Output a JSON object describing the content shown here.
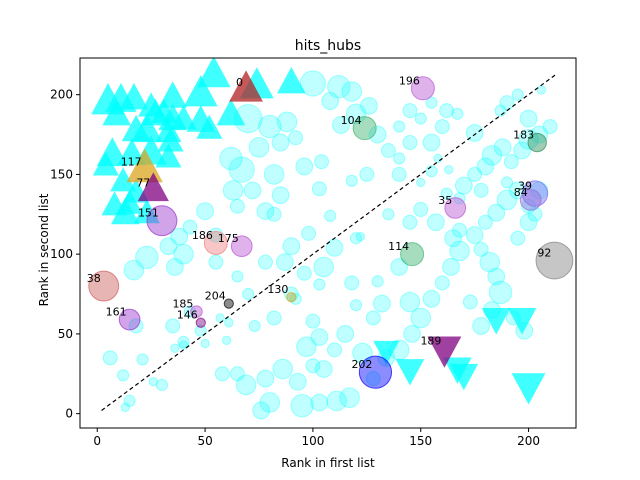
{
  "chart_data": {
    "type": "scatter",
    "title": "hits_hubs",
    "xlabel": "Rank in first list",
    "ylabel": "Rank in second list",
    "xlim": [
      -8,
      222
    ],
    "ylim": [
      -9,
      223
    ],
    "xticks": [
      0,
      50,
      100,
      150,
      200
    ],
    "yticks": [
      0,
      50,
      100,
      150,
      200
    ],
    "grid": false,
    "diagonal": {
      "from": [
        2,
        2
      ],
      "to": [
        213,
        213
      ],
      "style": "dashed",
      "color": "#000000"
    },
    "background_points": [
      [
        112,
        205,
        8
      ],
      [
        118,
        202,
        7
      ],
      [
        100,
        207,
        9
      ],
      [
        108,
        196,
        6
      ],
      [
        70,
        185,
        10
      ],
      [
        80,
        180,
        8
      ],
      [
        88,
        183,
        7
      ],
      [
        113,
        181,
        6
      ],
      [
        120,
        188,
        7
      ],
      [
        126,
        193,
        6
      ],
      [
        75,
        167,
        7
      ],
      [
        85,
        170,
        6
      ],
      [
        92,
        173,
        5
      ],
      [
        62,
        160,
        8
      ],
      [
        67,
        153,
        9
      ],
      [
        82,
        150,
        7
      ],
      [
        96,
        155,
        6
      ],
      [
        104,
        158,
        5
      ],
      [
        63,
        140,
        7
      ],
      [
        72,
        140,
        6
      ],
      [
        85,
        137,
        6
      ],
      [
        103,
        141,
        5
      ],
      [
        65,
        130,
        5
      ],
      [
        78,
        127,
        6
      ],
      [
        82,
        125,
        5
      ],
      [
        50,
        127,
        6
      ],
      [
        108,
        124,
        4
      ],
      [
        55,
        112,
        5
      ],
      [
        43,
        117,
        5
      ],
      [
        38,
        111,
        6
      ],
      [
        40,
        100,
        7
      ],
      [
        36,
        92,
        6
      ],
      [
        23,
        98,
        8
      ],
      [
        17,
        90,
        7
      ],
      [
        33,
        105,
        6
      ],
      [
        55,
        95,
        5
      ],
      [
        65,
        86,
        4
      ],
      [
        78,
        95,
        5
      ],
      [
        87,
        95,
        6
      ],
      [
        96,
        88,
        5
      ],
      [
        105,
        92,
        7
      ],
      [
        110,
        104,
        6
      ],
      [
        98,
        113,
        5
      ],
      [
        90,
        105,
        6
      ],
      [
        118,
        82,
        5
      ],
      [
        130,
        83,
        4
      ],
      [
        140,
        92,
        6
      ],
      [
        145,
        70,
        7
      ],
      [
        132,
        69,
        6
      ],
      [
        128,
        60,
        5
      ],
      [
        120,
        68,
        4
      ],
      [
        115,
        50,
        6
      ],
      [
        123,
        38,
        7
      ],
      [
        110,
        40,
        5
      ],
      [
        103,
        48,
        6
      ],
      [
        97,
        42,
        7
      ],
      [
        105,
        28,
        6
      ],
      [
        117,
        10,
        7
      ],
      [
        111,
        8,
        7
      ],
      [
        103,
        7,
        6
      ],
      [
        95,
        5,
        8
      ],
      [
        80,
        7,
        7
      ],
      [
        76,
        2,
        6
      ],
      [
        69,
        18,
        7
      ],
      [
        65,
        25,
        5
      ],
      [
        78,
        22,
        6
      ],
      [
        58,
        25,
        5
      ],
      [
        86,
        28,
        7
      ],
      [
        93,
        20,
        6
      ],
      [
        100,
        30,
        5
      ],
      [
        128,
        22,
        5
      ],
      [
        134,
        35,
        6
      ],
      [
        140,
        40,
        7
      ],
      [
        146,
        50,
        6
      ],
      [
        150,
        60,
        7
      ],
      [
        155,
        72,
        6
      ],
      [
        160,
        82,
        5
      ],
      [
        164,
        92,
        6
      ],
      [
        168,
        102,
        7
      ],
      [
        165,
        110,
        6
      ],
      [
        168,
        115,
        5
      ],
      [
        157,
        120,
        6
      ],
      [
        150,
        128,
        5
      ],
      [
        162,
        138,
        4
      ],
      [
        170,
        143,
        6
      ],
      [
        175,
        150,
        5
      ],
      [
        180,
        155,
        6
      ],
      [
        183,
        162,
        7
      ],
      [
        188,
        167,
        6
      ],
      [
        192,
        158,
        5
      ],
      [
        197,
        165,
        6
      ],
      [
        200,
        172,
        7
      ],
      [
        205,
        175,
        6
      ],
      [
        210,
        180,
        5
      ],
      [
        195,
        140,
        6
      ],
      [
        190,
        134,
        7
      ],
      [
        185,
        126,
        6
      ],
      [
        180,
        120,
        5
      ],
      [
        175,
        112,
        6
      ],
      [
        178,
        103,
        5
      ],
      [
        182,
        95,
        7
      ],
      [
        185,
        86,
        6
      ],
      [
        187,
        76,
        8
      ],
      [
        183,
        65,
        6
      ],
      [
        173,
        70,
        5
      ],
      [
        178,
        55,
        6
      ],
      [
        193,
        60,
        5
      ],
      [
        198,
        52,
        6
      ],
      [
        195,
        110,
        5
      ],
      [
        200,
        120,
        6
      ],
      [
        200,
        130,
        5
      ],
      [
        205,
        140,
        6
      ],
      [
        203,
        125,
        5
      ],
      [
        190,
        145,
        4
      ],
      [
        178,
        140,
        5
      ],
      [
        168,
        135,
        4
      ],
      [
        155,
        170,
        6
      ],
      [
        160,
        180,
        5
      ],
      [
        162,
        190,
        5
      ],
      [
        155,
        195,
        4
      ],
      [
        150,
        185,
        4
      ],
      [
        145,
        170,
        5
      ],
      [
        140,
        160,
        4
      ],
      [
        135,
        165,
        5
      ],
      [
        130,
        175,
        6
      ],
      [
        140,
        180,
        4
      ],
      [
        145,
        190,
        5
      ],
      [
        167,
        188,
        4
      ],
      [
        175,
        176,
        6
      ],
      [
        187,
        190,
        4
      ],
      [
        190,
        195,
        5
      ],
      [
        195,
        200,
        4
      ],
      [
        200,
        185,
        6
      ],
      [
        206,
        203,
        3
      ],
      [
        155,
        152,
        4
      ],
      [
        158,
        160,
        3
      ],
      [
        163,
        153,
        3
      ],
      [
        140,
        150,
        5
      ],
      [
        12,
        24,
        4
      ],
      [
        6,
        35,
        5
      ],
      [
        15,
        8,
        4
      ],
      [
        30,
        18,
        4
      ],
      [
        26,
        20,
        3
      ],
      [
        35,
        55,
        5
      ],
      [
        40,
        45,
        4
      ],
      [
        48,
        52,
        4
      ],
      [
        60,
        46,
        3
      ],
      [
        73,
        55,
        4
      ],
      [
        90,
        75,
        5
      ],
      [
        92,
        72,
        4
      ],
      [
        100,
        58,
        5
      ],
      [
        82,
        60,
        5
      ],
      [
        70,
        75,
        4
      ],
      [
        103,
        81,
        4
      ],
      [
        43,
        64,
        4
      ],
      [
        36,
        41,
        3
      ],
      [
        40,
        43,
        3
      ],
      [
        50,
        44,
        3
      ],
      [
        18,
        55,
        5
      ],
      [
        21,
        34,
        4
      ],
      [
        57,
        60,
        3
      ],
      [
        61,
        57,
        3
      ],
      [
        135,
        125,
        4
      ],
      [
        145,
        120,
        5
      ],
      [
        120,
        110,
        4
      ],
      [
        122,
        111,
        3
      ],
      [
        150,
        145,
        3
      ],
      [
        125,
        150,
        5
      ],
      [
        118,
        146,
        4
      ],
      [
        13,
        4,
        3
      ]
    ],
    "triangles_up": [
      [
        5,
        195,
        13
      ],
      [
        9,
        187,
        11
      ],
      [
        11,
        196,
        12
      ],
      [
        17,
        197,
        11
      ],
      [
        18,
        177,
        11
      ],
      [
        23,
        177,
        12
      ],
      [
        27,
        187,
        11
      ],
      [
        31,
        188,
        10
      ],
      [
        33,
        176,
        10
      ],
      [
        35,
        184,
        11
      ],
      [
        34,
        170,
        10
      ],
      [
        33,
        160,
        10
      ],
      [
        25,
        163,
        12
      ],
      [
        16,
        162,
        11
      ],
      [
        7,
        162,
        12
      ],
      [
        4,
        155,
        10
      ],
      [
        12,
        145,
        10
      ],
      [
        8,
        130,
        10
      ],
      [
        13,
        125,
        11
      ],
      [
        23,
        125,
        10
      ],
      [
        15,
        131,
        10
      ],
      [
        18,
        138,
        10
      ],
      [
        48,
        183,
        11
      ],
      [
        48,
        200,
        13
      ],
      [
        54,
        212,
        13
      ],
      [
        40,
        184,
        10
      ],
      [
        35,
        198,
        11
      ],
      [
        74,
        205,
        13
      ],
      [
        90,
        207,
        11
      ],
      [
        25,
        192,
        10
      ],
      [
        62,
        187,
        11
      ],
      [
        52,
        178,
        10
      ]
    ],
    "triangles_down": [
      [
        185,
        60,
        11
      ],
      [
        197,
        60,
        11
      ],
      [
        167,
        29,
        11
      ],
      [
        170,
        25,
        11
      ],
      [
        145,
        28,
        11
      ],
      [
        200,
        18,
        13
      ],
      [
        134,
        40,
        10
      ]
    ],
    "highlight_points": [
      {
        "label": "0",
        "x": 69,
        "y": 203,
        "size": 13,
        "shape": "triangle-up",
        "color": "#B22222"
      },
      {
        "label": "196",
        "x": 151,
        "y": 204,
        "size": 10,
        "shape": "circle",
        "color": "#BA55D3"
      },
      {
        "label": "104",
        "x": 124,
        "y": 179,
        "size": 10,
        "shape": "circle",
        "color": "#3CB371"
      },
      {
        "label": "183",
        "x": 204,
        "y": 170,
        "size": 8,
        "shape": "circle",
        "color": "#2E8B57"
      },
      {
        "label": "117",
        "x": 22,
        "y": 153,
        "size": 14,
        "shape": "triangle-up",
        "color": "#DAA520"
      },
      {
        "label": "77",
        "x": 26,
        "y": 140,
        "size": 12,
        "shape": "triangle-up",
        "color": "#800080"
      },
      {
        "label": "39",
        "x": 203,
        "y": 138,
        "size": 11,
        "shape": "circle",
        "color": "#7B68EE"
      },
      {
        "label": "84",
        "x": 201,
        "y": 134,
        "size": 9,
        "shape": "circle",
        "color": "#9370DB"
      },
      {
        "label": "35",
        "x": 166,
        "y": 129,
        "size": 9,
        "shape": "circle",
        "color": "#BA55D3"
      },
      {
        "label": "151",
        "x": 30,
        "y": 121,
        "size": 13,
        "shape": "circle",
        "color": "#9932CC"
      },
      {
        "label": "186",
        "x": 55,
        "y": 107,
        "size": 10,
        "shape": "circle",
        "color": "#F08080"
      },
      {
        "label": "175",
        "x": 67,
        "y": 105,
        "size": 9,
        "shape": "circle",
        "color": "#BA55D3"
      },
      {
        "label": "114",
        "x": 146,
        "y": 100,
        "size": 10,
        "shape": "circle",
        "color": "#3CB371"
      },
      {
        "label": "92",
        "x": 212,
        "y": 96,
        "size": 16,
        "shape": "circle",
        "color": "#808080"
      },
      {
        "label": "38",
        "x": 3,
        "y": 80,
        "size": 13,
        "shape": "circle",
        "color": "#CD5C5C"
      },
      {
        "label": "130",
        "x": 90,
        "y": 73,
        "size": 4,
        "shape": "circle",
        "color": "#DAA520"
      },
      {
        "label": "204",
        "x": 61,
        "y": 69,
        "size": 4,
        "shape": "circle",
        "color": "#000000"
      },
      {
        "label": "185",
        "x": 46,
        "y": 64,
        "size": 5,
        "shape": "circle",
        "color": "#BA55D3"
      },
      {
        "label": "146",
        "x": 48,
        "y": 57,
        "size": 4,
        "shape": "circle",
        "color": "#800080"
      },
      {
        "label": "161",
        "x": 15,
        "y": 59,
        "size": 9,
        "shape": "circle",
        "color": "#9932CC"
      },
      {
        "label": "189",
        "x": 161,
        "y": 41,
        "size": 13,
        "shape": "triangle-down",
        "color": "#800080"
      },
      {
        "label": "202",
        "x": 129,
        "y": 26,
        "size": 14,
        "shape": "circle",
        "color": "#0000FF"
      }
    ],
    "colors": {
      "background": "#00FFFF",
      "triangles": "#00FFFF",
      "axes": "#000000"
    }
  }
}
